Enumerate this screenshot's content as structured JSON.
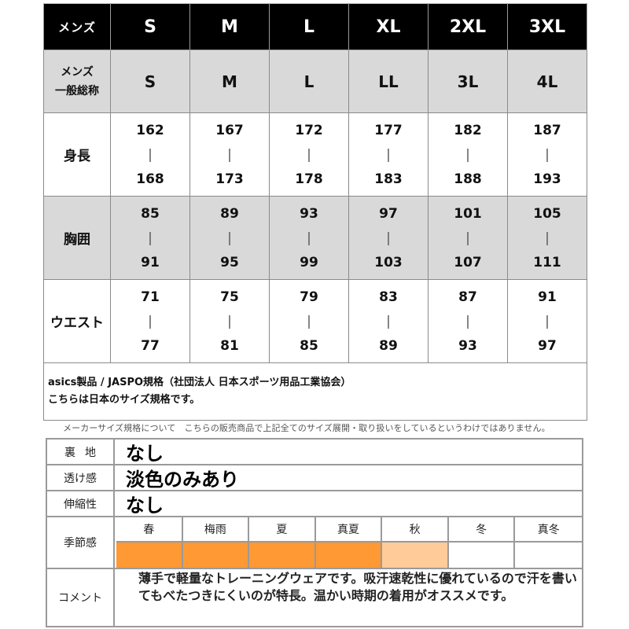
{
  "size_table": {
    "header": {
      "label": "メンズ",
      "sizes": [
        "S",
        "M",
        "L",
        "XL",
        "2XL",
        "3XL"
      ]
    },
    "general": {
      "label": [
        "メンズ",
        "一般総称"
      ],
      "values": [
        "S",
        "M",
        "L",
        "LL",
        "3L",
        "4L"
      ]
    },
    "separator": "|",
    "rows": [
      {
        "label": "身長",
        "ranges": [
          [
            "162",
            "168"
          ],
          [
            "167",
            "173"
          ],
          [
            "172",
            "178"
          ],
          [
            "177",
            "183"
          ],
          [
            "182",
            "188"
          ],
          [
            "187",
            "193"
          ]
        ]
      },
      {
        "label": "胸囲",
        "ranges": [
          [
            "85",
            "91"
          ],
          [
            "89",
            "95"
          ],
          [
            "93",
            "99"
          ],
          [
            "97",
            "103"
          ],
          [
            "101",
            "107"
          ],
          [
            "105",
            "111"
          ]
        ]
      },
      {
        "label": "ウエスト",
        "ranges": [
          [
            "71",
            "77"
          ],
          [
            "75",
            "81"
          ],
          [
            "79",
            "85"
          ],
          [
            "83",
            "89"
          ],
          [
            "87",
            "93"
          ],
          [
            "91",
            "97"
          ]
        ]
      }
    ],
    "note_lines": [
      "asics製品 / JASPO規格（社団法人 日本スポーツ用品工業協会）",
      "こちらは日本のサイズ規格です。"
    ]
  },
  "caption": "メーカーサイズ規格について　こちらの販売商品で上記全てのサイズ展開・取り扱いをしているというわけではありません。",
  "spec": {
    "lining": {
      "label": "裏地",
      "value": "なし"
    },
    "sheerness": {
      "label": "透け感",
      "value": "淡色のみあり"
    },
    "stretch": {
      "label": "伸縮性",
      "value": "なし"
    },
    "season": {
      "label": "季節感",
      "seasons": [
        {
          "name": "春",
          "color": "#ff9933"
        },
        {
          "name": "梅雨",
          "color": "#ff9933"
        },
        {
          "name": "夏",
          "color": "#ff9933"
        },
        {
          "name": "真夏",
          "color": "#ff9933"
        },
        {
          "name": "秋",
          "color": "#ffcc99"
        },
        {
          "name": "冬",
          "color": "#ffffff"
        },
        {
          "name": "真冬",
          "color": "#ffffff"
        }
      ]
    },
    "comment": {
      "label": "コメント",
      "text": "薄手で軽量なトレーニングウェアです。吸汗速乾性に優れているので汗を書いてもべたつきにくいのが特長。温かい時期の着用がオススメです。"
    }
  }
}
